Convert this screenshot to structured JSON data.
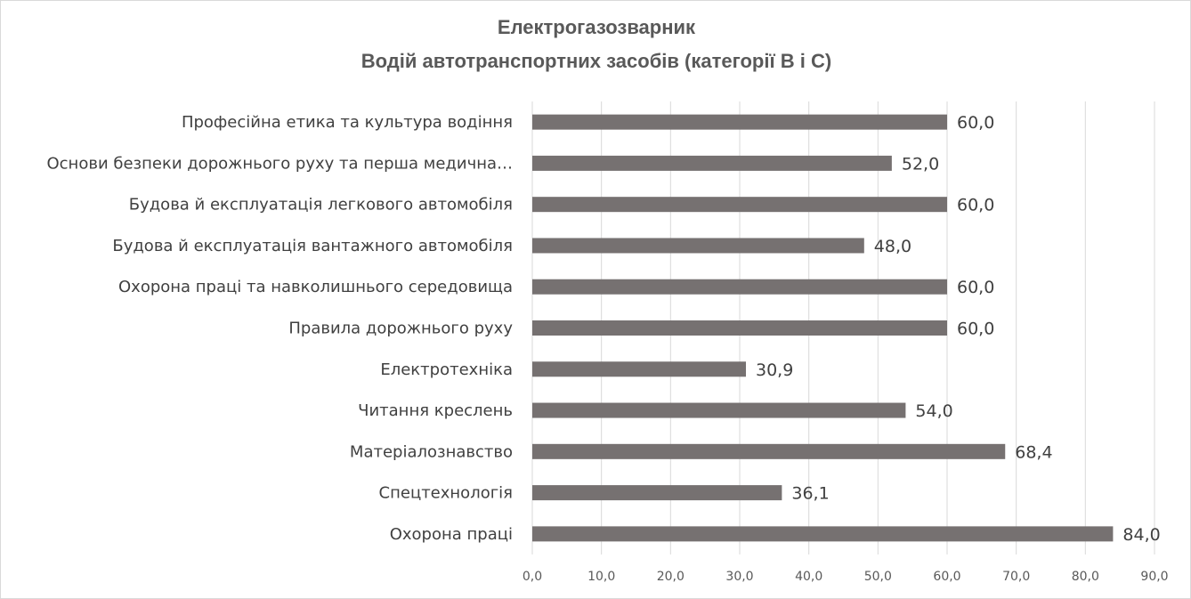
{
  "chart_data": {
    "type": "bar",
    "orientation": "horizontal",
    "title": [
      "Електрогазозварник",
      "Водій автотранспортних засобів (категорії В і С)"
    ],
    "categories": [
      "Охорона праці",
      "Спецтехнологія",
      "Матеріалознавство",
      "Читання креслень",
      "Електротехніка",
      "Правила дорожнього руху",
      "Охорона праці та навколишнього середовища",
      "Будова й експлуатація вантажного автомобіля",
      "Будова й експлуатація легкового автомобіля",
      "Основи безпеки дорожнього руху та перша медична…",
      "Професійна етика та культура водіння"
    ],
    "values": [
      84.0,
      36.1,
      68.4,
      54.0,
      30.9,
      60.0,
      60.0,
      48.0,
      60.0,
      52.0,
      60.0
    ],
    "value_labels": [
      "84,0",
      "36,1",
      "68,4",
      "54,0",
      "30,9",
      "60,0",
      "60,0",
      "48,0",
      "60,0",
      "52,0",
      "60,0"
    ],
    "xlim": [
      0,
      90
    ],
    "xticks": [
      0,
      10,
      20,
      30,
      40,
      50,
      60,
      70,
      80,
      90
    ],
    "xtick_labels": [
      "0,0",
      "10,0",
      "20,0",
      "30,0",
      "40,0",
      "50,0",
      "60,0",
      "70,0",
      "80,0",
      "90,0"
    ],
    "xlabel": "",
    "ylabel": "",
    "grid": true,
    "legend": "none",
    "bar_color": "#767171",
    "grid_color": "#d9d9d9",
    "text_color": "#404040",
    "title_color": "#595959"
  }
}
